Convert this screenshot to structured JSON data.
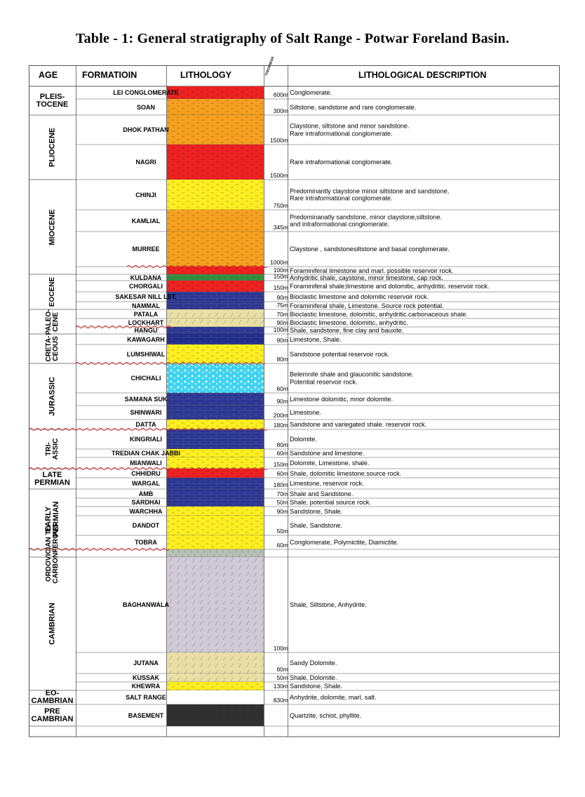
{
  "title": "Table - 1: General stratigraphy of Salt Range - Potwar Foreland Basin.",
  "headers": {
    "age": "AGE",
    "formation": "FORMATIOIN",
    "lithology": "LITHOLOGY",
    "thickness": "THICKNESS",
    "description": "LITHOLOGICAL DESCRIPTION"
  },
  "colors": {
    "red": "#ee2222",
    "orange": "#f5a020",
    "yellow": "#fcee21",
    "navy": "#2a3590",
    "blue": "#1e2a85",
    "green": "#2f8a3a",
    "tan": "#e8dfa6",
    "cyan": "#3fd3f0",
    "grey": "#b8bfb6",
    "lavender": "#cfcad6",
    "dark": "#303030",
    "line": "#555555",
    "red_line": "#d42020"
  },
  "ages": [
    {
      "label": "PLEIS-\nTOCENE"
    },
    {
      "label": "PLIOCENE"
    },
    {
      "label": "MIOCENE"
    },
    {
      "label": "EOCENE"
    },
    {
      "label": "PALEO-\nCENE"
    },
    {
      "label": "CRETA-\nCEOUS"
    },
    {
      "label": "JURASSIC"
    },
    {
      "label": "TRI-\nASSIC"
    },
    {
      "label": "LATE\nPERMIAN"
    },
    {
      "label": "EARLY\nPERMIAN"
    },
    {
      "label": "ORDOVICIAN TO\nCARBONFEROUS"
    },
    {
      "label": "CAMBRIAN"
    },
    {
      "label": "EO-\nCAMBRIAN"
    },
    {
      "label": "PRE\nCAMBRIAN"
    }
  ],
  "formations": [
    {
      "name": "LEI CONGLOMERATE",
      "thickness": "600m",
      "description": "Conglomerate.",
      "color": "red"
    },
    {
      "name": "SOAN",
      "thickness": "300m",
      "description": "Siltstone, sandstone and rare conglomerate.",
      "color": "orange"
    },
    {
      "name": "DHOK PATHAN",
      "thickness": "1500m",
      "description": "Claystone, siltstone and minor sandstone.\nRare intraformational conglomerate.",
      "color": "orange"
    },
    {
      "name": "NAGRI",
      "thickness": "1500m",
      "description": "Rare intraformational conglomerate.",
      "color": "red"
    },
    {
      "name": "CHINJI",
      "thickness": "750m",
      "description": "Predominantly claystone minor siltstone and sandstone,\nRare intraformational conglomerate.",
      "color": "yellow"
    },
    {
      "name": "KAMLIAL",
      "thickness": "345m",
      "description": "Predominanatly sandstone, minor claystone,siltstone.\nand intraformational conglomerate.",
      "color": "orange"
    },
    {
      "name": "MURREE",
      "thickness": "1000m",
      "description": "Claystone , sandstonesiltstone and basal conglomerate.",
      "color": "orange"
    },
    {
      "name": "",
      "thickness": "100m",
      "description": "Foraminiferal limestone and marl. possible reservoir rock.",
      "color": "red"
    },
    {
      "name": "KULDANA",
      "thickness": "150m",
      "description": "Anhydritic shale, caystone, minor limestone, cap rock.",
      "color": "green"
    },
    {
      "name": "CHORGALI",
      "thickness": "150m",
      "description": "Foraminiferal shale;limestone and dolomitic, anhydritic. reservoir rock.",
      "color": "red"
    },
    {
      "name": "SAKESAR    NILL LST.",
      "thickness": "90m",
      "description": "Bioclastic limestone and dolomitic reservoir rock.",
      "color": "navy"
    },
    {
      "name": "NAMMAL",
      "thickness": "75m",
      "description": "Foraminiferal shale, Limestone. Source rock potential.",
      "color": "navy"
    },
    {
      "name": "PATALA",
      "thickness": "70m",
      "description": "Bioclastic limestone, dolomitic, anhydritic.carbonaceous shale.",
      "color": "tan"
    },
    {
      "name": "LOCKHART",
      "thickness": "90m",
      "description": "Bioclastic limestone, dolomitic, anhydritic.",
      "color": "tan"
    },
    {
      "name": "HANGU",
      "thickness": "100m",
      "description": "Shale, sandstone, fine clay and bauxite.",
      "color": "navy"
    },
    {
      "name": "KAWAGARH",
      "thickness": "90m",
      "description": "Limestone, Shale.",
      "color": "blue"
    },
    {
      "name": "LUMSHIWAL",
      "thickness": "80m",
      "description": "Sandstone potential reservoir rock.",
      "color": "yellow"
    },
    {
      "name": "CHICHALI",
      "thickness": "60m",
      "description": "Belemnite shale and glauconitic sandstone.\nPotential reservoir rock.",
      "color": "cyan"
    },
    {
      "name": "SAMANA SUK",
      "thickness": "90m",
      "description": "Limestone dolomitic, mnor dolomite.",
      "color": "navy"
    },
    {
      "name": "SHINWARI",
      "thickness": "200m",
      "description": "Limestone.",
      "color": "navy"
    },
    {
      "name": "DATTA",
      "thickness": "180m",
      "description": "Sandstone and variegated shale. reservoir rock.",
      "color": "yellow"
    },
    {
      "name": "KINGRIALI",
      "thickness": "80m",
      "description": "Dolomite.",
      "color": "navy"
    },
    {
      "name": "TREDIAN    CHAK JABBI",
      "thickness": "60m",
      "description": "Sandstone and limestone.",
      "color": "yellow"
    },
    {
      "name": "MIANWALI",
      "thickness": "150m",
      "description": "Dolomite, Limestone, shale.",
      "color": "yellow"
    },
    {
      "name": "CHHIDRU",
      "thickness": "60m",
      "description": "Shale, dolomitic limestone.source rock.",
      "color": "red"
    },
    {
      "name": "WARGAL",
      "thickness": "180m",
      "description": "Limestone, reservoir rock.",
      "color": "navy"
    },
    {
      "name": "AMB",
      "thickness": "70m",
      "description": "Shale and Sandstone.",
      "color": "navy"
    },
    {
      "name": "SARDHAI",
      "thickness": "50m",
      "description": "Shale, potential source rock.",
      "color": "navy"
    },
    {
      "name": "WARCHHA",
      "thickness": "90m",
      "description": "Sandstone, Shale.",
      "color": "yellow"
    },
    {
      "name": "DANDOT",
      "thickness": "50m",
      "description": "Shale, Sandstone.",
      "color": "yellow"
    },
    {
      "name": "TOBRA",
      "thickness": "60m",
      "description": "Conglomerate, Polymictite, Diamictite.",
      "color": "yellow"
    },
    {
      "name": "",
      "thickness": "",
      "description": "",
      "color": "grey"
    },
    {
      "name": "BAGHANWALA",
      "thickness": "100m",
      "description": "Shale, Siltstone, Anhydrite.",
      "color": "lavender"
    },
    {
      "name": "JUTANA",
      "thickness": "60m",
      "description": "Sandy Dolomite.",
      "color": "tan"
    },
    {
      "name": "KUSSAK",
      "thickness": "50m",
      "description": "Shale, Dolomite.",
      "color": "tan"
    },
    {
      "name": "KHEWRA",
      "thickness": "130m",
      "description": "Sandstone, Shale.",
      "color": "yellow"
    },
    {
      "name": "SALT RANGE",
      "thickness": "830m",
      "description": "Anhydrite, dolomite, marl, salt.",
      "color": "white"
    },
    {
      "name": "BASEMENT",
      "thickness": "",
      "description": "Quartzite, schist, phyllite.",
      "color": "dark"
    }
  ]
}
